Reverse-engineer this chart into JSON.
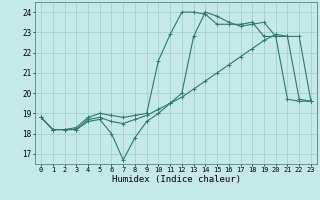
{
  "title": "",
  "xlabel": "Humidex (Indice chaleur)",
  "ylabel": "",
  "background_color": "#c5e8e8",
  "grid_color": "#a8d0d0",
  "line_color": "#2a7a6a",
  "xlim": [
    -0.5,
    23.5
  ],
  "ylim": [
    16.5,
    24.5
  ],
  "xticks": [
    0,
    1,
    2,
    3,
    4,
    5,
    6,
    7,
    8,
    9,
    10,
    11,
    12,
    13,
    14,
    15,
    16,
    17,
    18,
    19,
    20,
    21,
    22,
    23
  ],
  "yticks": [
    17,
    18,
    19,
    20,
    21,
    22,
    23,
    24
  ],
  "line1_x": [
    0,
    1,
    2,
    3,
    4,
    5,
    6,
    7,
    8,
    9,
    10,
    11,
    12,
    13,
    14,
    15,
    16,
    17,
    18,
    19,
    20,
    21,
    22,
    23
  ],
  "line1_y": [
    18.8,
    18.2,
    18.2,
    18.2,
    18.6,
    18.7,
    18.0,
    16.7,
    17.8,
    18.6,
    19.0,
    19.5,
    20.0,
    22.8,
    24.0,
    23.8,
    23.5,
    23.3,
    23.4,
    23.5,
    22.8,
    22.8,
    19.7,
    19.6
  ],
  "line2_x": [
    0,
    1,
    2,
    3,
    4,
    5,
    6,
    7,
    8,
    9,
    10,
    11,
    12,
    13,
    14,
    15,
    16,
    17,
    18,
    19,
    20,
    21,
    22,
    23
  ],
  "line2_y": [
    18.8,
    18.2,
    18.2,
    18.2,
    18.7,
    18.8,
    18.6,
    18.5,
    18.7,
    18.9,
    19.2,
    19.5,
    19.8,
    20.2,
    20.6,
    21.0,
    21.4,
    21.8,
    22.2,
    22.6,
    22.9,
    22.8,
    22.8,
    19.6
  ],
  "line3_x": [
    0,
    1,
    2,
    3,
    4,
    5,
    6,
    7,
    8,
    9,
    10,
    11,
    12,
    13,
    14,
    15,
    16,
    17,
    18,
    19,
    20,
    21,
    22,
    23
  ],
  "line3_y": [
    18.8,
    18.2,
    18.2,
    18.3,
    18.8,
    19.0,
    18.9,
    18.8,
    18.9,
    19.0,
    21.6,
    22.9,
    24.0,
    24.0,
    23.9,
    23.4,
    23.4,
    23.4,
    23.5,
    22.8,
    22.8,
    19.7,
    19.6,
    19.6
  ]
}
